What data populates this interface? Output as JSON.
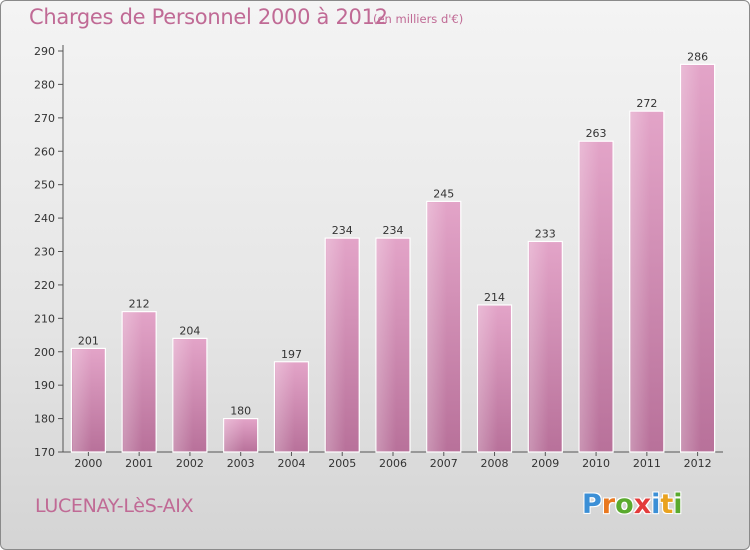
{
  "chart_data": {
    "type": "bar",
    "title": "Charges de Personnel 2000 à 2012",
    "subtitle": "(en milliers d'€)",
    "categories": [
      "2000",
      "2001",
      "2002",
      "2003",
      "2004",
      "2005",
      "2006",
      "2007",
      "2008",
      "2009",
      "2010",
      "2011",
      "2012"
    ],
    "values": [
      201,
      212,
      204,
      180,
      197,
      234,
      234,
      245,
      214,
      233,
      263,
      272,
      286
    ],
    "ylim": [
      170,
      290
    ],
    "yticks": [
      170,
      180,
      190,
      200,
      210,
      220,
      230,
      240,
      250,
      260,
      270,
      280,
      290
    ],
    "grid": false,
    "bar_color": "#d98fb8"
  },
  "footer": {
    "commune": "LUCENAY-LèS-AIX",
    "logo_letters": [
      {
        "char": "P",
        "color": "#3b8fd6"
      },
      {
        "char": "r",
        "color": "#e9781f"
      },
      {
        "char": "o",
        "color": "#5aaa2e"
      },
      {
        "char": "x",
        "color": "#e33b3b"
      },
      {
        "char": "i",
        "color": "#3b8fd6"
      },
      {
        "char": "t",
        "color": "#e9a21f"
      },
      {
        "char": "i",
        "color": "#5aaa2e"
      }
    ]
  }
}
